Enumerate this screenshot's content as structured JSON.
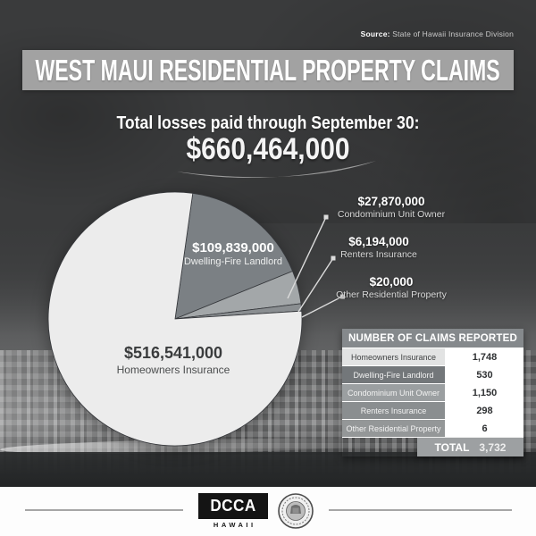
{
  "source": {
    "label": "Source:",
    "text": "State of Hawaii Insurance Division"
  },
  "header": {
    "title": "WEST MAUI RESIDENTIAL PROPERTY CLAIMS"
  },
  "total": {
    "caption": "Total losses paid through September 30:",
    "amount": "$660,464,000"
  },
  "pie": {
    "slices": [
      {
        "name": "Homeowners Insurance",
        "amount": "$516,541,000",
        "value": 516541000,
        "color": "#ececec"
      },
      {
        "name": "Dwelling-Fire Landlord",
        "amount": "$109,839,000",
        "value": 109839000,
        "color": "#7b8084"
      },
      {
        "name": "Condominium Unit Owner",
        "amount": "$27,870,000",
        "value": 27870000,
        "color": "#a3a7a9"
      },
      {
        "name": "Renters Insurance",
        "amount": "$6,194,000",
        "value": 6194000,
        "color": "#8a8e91"
      },
      {
        "name": "Other Residential Property",
        "amount": "$20,000",
        "value": 20000,
        "color": "#5e6264"
      }
    ]
  },
  "claims_table": {
    "title": "NUMBER OF CLAIMS REPORTED",
    "rows": [
      {
        "label": "Homeowners Insurance",
        "count": "1,748"
      },
      {
        "label": "Dwelling-Fire Landlord",
        "count": "530"
      },
      {
        "label": "Condominium Unit Owner",
        "count": "1,150"
      },
      {
        "label": "Renters Insurance",
        "count": "298"
      },
      {
        "label": "Other Residential Property",
        "count": "6"
      }
    ],
    "total_label": "TOTAL",
    "total_value": "3,732"
  },
  "footer": {
    "logo_text": "DCCA",
    "logo_subtext": "HAWAII"
  },
  "chart_data": [
    {
      "type": "pie",
      "title": "West Maui Residential Property Claims — Total losses paid through September 30: $660,464,000",
      "categories": [
        "Homeowners Insurance",
        "Dwelling-Fire Landlord",
        "Condominium Unit Owner",
        "Renters Insurance",
        "Other Residential Property"
      ],
      "values": [
        516541000,
        109839000,
        27870000,
        6194000,
        20000
      ],
      "value_labels": [
        "$516,541,000",
        "$109,839,000",
        "$27,870,000",
        "$6,194,000",
        "$20,000"
      ],
      "total": 660464000,
      "colors": [
        "#ececec",
        "#7b8084",
        "#a3a7a9",
        "#8a8e91",
        "#5e6264"
      ],
      "start_angle_deg": 8,
      "direction": "clockwise",
      "draw_order": [
        1,
        2,
        3,
        4,
        0
      ],
      "legend_position": "callouts"
    },
    {
      "type": "table",
      "title": "NUMBER OF CLAIMS REPORTED",
      "categories": [
        "Homeowners Insurance",
        "Dwelling-Fire Landlord",
        "Condominium Unit Owner",
        "Renters Insurance",
        "Other Residential Property"
      ],
      "values": [
        1748,
        530,
        1150,
        298,
        6
      ],
      "total": 3732
    }
  ]
}
